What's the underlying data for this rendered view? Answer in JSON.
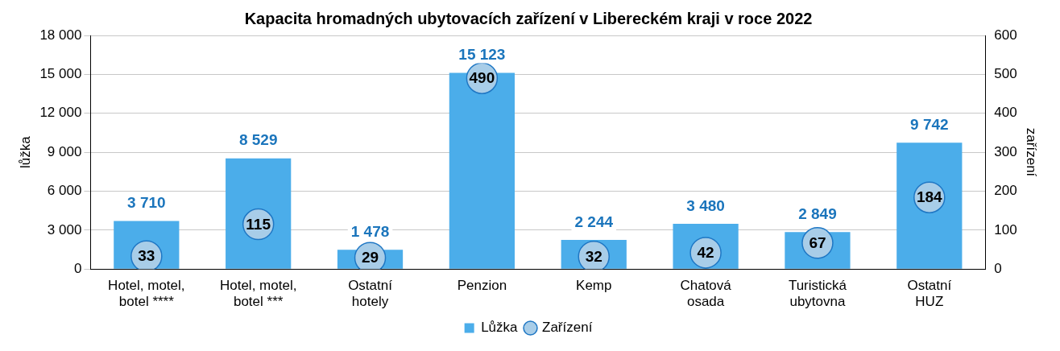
{
  "chart_data": {
    "type": "bar",
    "title": "Kapacita hromadných ubytovacích zařízení v Libereckém kraji v roce 2022",
    "ylabel": "lůžka",
    "y2label": "zařízení",
    "categories": [
      "Hotel, motel, botel ****",
      "Hotel, motel, botel ***",
      "Ostatní hotely",
      "Penzion",
      "Kemp",
      "Chatová osada",
      "Turistická ubytovna",
      "Ostatní HUZ"
    ],
    "series": [
      {
        "name": "Lůžka",
        "color": "#4badea",
        "values": [
          3710,
          8529,
          1478,
          15123,
          2244,
          3480,
          2849,
          9742
        ],
        "value_labels": [
          "3 710",
          "8 529",
          "1 478",
          "15 123",
          "2 244",
          "3 480",
          "2 849",
          "9 742"
        ]
      },
      {
        "name": "Zařízení",
        "type": "scatter",
        "axis": "y2",
        "color": "#a8cde8",
        "values": [
          33,
          115,
          29,
          490,
          32,
          42,
          67,
          184
        ],
        "value_labels": [
          "33",
          "115",
          "29",
          "490",
          "32",
          "42",
          "67",
          "184"
        ]
      }
    ],
    "ylim": [
      0,
      18000
    ],
    "yticks": [
      0,
      {
        "value": 3000,
        "label": "3 000"
      },
      {
        "value": 6000,
        "label": "6 000"
      },
      {
        "value": 9000,
        "label": "9 000"
      },
      {
        "value": 12000,
        "label": "12 000"
      },
      {
        "value": 15000,
        "label": "15 000"
      },
      {
        "value": 18000,
        "label": "18 000"
      }
    ],
    "y2lim": [
      0,
      600
    ],
    "y2ticks": [
      0,
      100,
      200,
      300,
      400,
      500,
      600
    ],
    "grid": "y",
    "legend": "bottom",
    "marker": "circle"
  }
}
